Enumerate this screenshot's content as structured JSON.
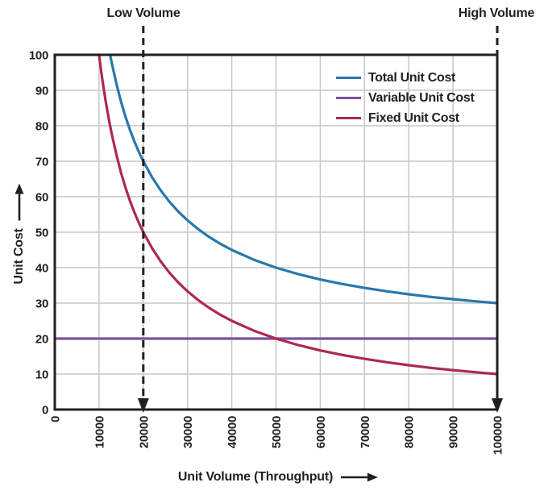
{
  "chart_data": {
    "type": "line",
    "xlabel": "Unit Volume (Throughput)",
    "ylabel": "Unit Cost",
    "xlim": [
      0,
      100000
    ],
    "ylim": [
      0,
      100
    ],
    "x_ticks": [
      0,
      10000,
      20000,
      30000,
      40000,
      50000,
      60000,
      70000,
      80000,
      90000,
      100000
    ],
    "y_ticks": [
      0,
      10,
      20,
      30,
      40,
      50,
      60,
      70,
      80,
      90,
      100
    ],
    "grid": true,
    "legend_position": "top-right",
    "colors": {
      "axis": "#231f20",
      "grid": "#c7c7c7"
    },
    "series": [
      {
        "name": "Total Unit Cost",
        "color": "#2878ae",
        "points": [
          [
            12500,
            100
          ],
          [
            13000,
            96.92
          ],
          [
            14000,
            91.43
          ],
          [
            15000,
            86.67
          ],
          [
            16000,
            82.5
          ],
          [
            17000,
            78.82
          ],
          [
            18000,
            75.56
          ],
          [
            19000,
            72.63
          ],
          [
            20000,
            70
          ],
          [
            22000,
            65.45
          ],
          [
            24000,
            61.67
          ],
          [
            26000,
            58.46
          ],
          [
            28000,
            55.71
          ],
          [
            30000,
            53.33
          ],
          [
            32500,
            50.77
          ],
          [
            35000,
            48.57
          ],
          [
            37500,
            46.67
          ],
          [
            40000,
            45
          ],
          [
            45000,
            42.22
          ],
          [
            50000,
            40
          ],
          [
            55000,
            38.18
          ],
          [
            60000,
            36.67
          ],
          [
            65000,
            35.38
          ],
          [
            70000,
            34.29
          ],
          [
            75000,
            33.33
          ],
          [
            80000,
            32.5
          ],
          [
            85000,
            31.76
          ],
          [
            90000,
            31.11
          ],
          [
            95000,
            30.53
          ],
          [
            100000,
            30
          ]
        ]
      },
      {
        "name": "Variable Unit Cost",
        "color": "#7a519d",
        "points": [
          [
            0,
            20
          ],
          [
            100000,
            20
          ]
        ]
      },
      {
        "name": "Fixed Unit Cost",
        "color": "#ad2853",
        "points": [
          [
            10000,
            100
          ],
          [
            10500,
            95.24
          ],
          [
            11000,
            90.91
          ],
          [
            11500,
            86.96
          ],
          [
            12000,
            83.33
          ],
          [
            12500,
            80
          ],
          [
            13000,
            76.92
          ],
          [
            14000,
            71.43
          ],
          [
            15000,
            66.67
          ],
          [
            16000,
            62.5
          ],
          [
            17000,
            58.82
          ],
          [
            18000,
            55.56
          ],
          [
            19000,
            52.63
          ],
          [
            20000,
            50
          ],
          [
            22000,
            45.45
          ],
          [
            24000,
            41.67
          ],
          [
            26000,
            38.46
          ],
          [
            28000,
            35.71
          ],
          [
            30000,
            33.33
          ],
          [
            32500,
            30.77
          ],
          [
            35000,
            28.57
          ],
          [
            37500,
            26.67
          ],
          [
            40000,
            25
          ],
          [
            45000,
            22.22
          ],
          [
            50000,
            20
          ],
          [
            55000,
            18.18
          ],
          [
            60000,
            16.67
          ],
          [
            65000,
            15.38
          ],
          [
            70000,
            14.29
          ],
          [
            75000,
            13.33
          ],
          [
            80000,
            12.5
          ],
          [
            85000,
            11.76
          ],
          [
            90000,
            11.11
          ],
          [
            95000,
            10.53
          ],
          [
            100000,
            10
          ]
        ]
      }
    ],
    "annotations": [
      {
        "label": "Low Volume",
        "x": 20000
      },
      {
        "label": "High Volume",
        "x": 100000
      }
    ]
  }
}
